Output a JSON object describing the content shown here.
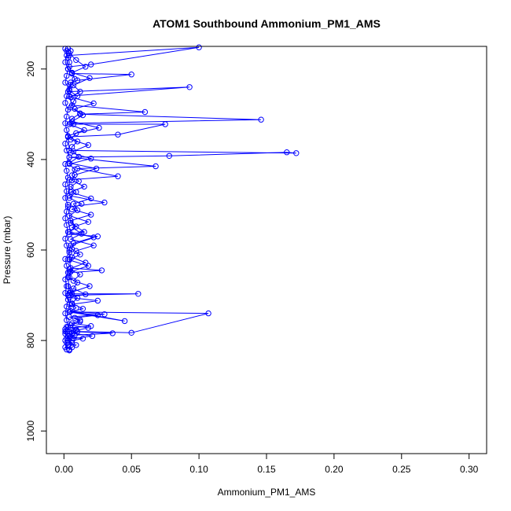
{
  "chart_data": {
    "type": "line",
    "title": "ATOM1 Southbound Ammonium_PM1_AMS",
    "xlabel": "Ammonium_PM1_AMS",
    "ylabel": "Pressure (mbar)",
    "xlim": [
      -0.013,
      0.313
    ],
    "ylim": [
      1050,
      150
    ],
    "y_reversed": true,
    "grid": false,
    "legend": "none",
    "color": "#0000ff",
    "x_ticks": [
      0.0,
      0.05,
      0.1,
      0.15,
      0.2,
      0.25,
      0.3
    ],
    "x_tick_labels": [
      "0.00",
      "0.05",
      "0.10",
      "0.15",
      "0.20",
      "0.25",
      "0.30"
    ],
    "y_ticks": [
      200,
      400,
      600,
      800,
      1000
    ],
    "y_tick_labels": [
      "200",
      "400",
      "600",
      "800",
      "1000"
    ],
    "series": [
      {
        "x": [
          0.003,
          0.005,
          0.004,
          0.1,
          0.02,
          0.004,
          0.006,
          0.05,
          0.01,
          0.005,
          0.003,
          0.093,
          0.004,
          0.006,
          0.06,
          0.012,
          0.146,
          0.005,
          0.007,
          0.075,
          0.04,
          0.003,
          0.004,
          0.172,
          0.165,
          0.078,
          0.004,
          0.068,
          0.01,
          0.04,
          0.004,
          0.004,
          0.03,
          0.003,
          0.005,
          0.015,
          0.004,
          0.025,
          0.005,
          0.004,
          0.004,
          0.005,
          0.028,
          0.004,
          0.004,
          0.003,
          0.005,
          0.004,
          0.006,
          0.055,
          0.003,
          0.004,
          0.005,
          0.045,
          0.004,
          0.107,
          0.05,
          0.01,
          0.004,
          0.004,
          0.003,
          0.006,
          0.004,
          0.004
        ],
        "y": [
          155,
          160,
          170,
          152,
          190,
          195,
          210,
          212,
          225,
          230,
          250,
          240,
          260,
          280,
          295,
          300,
          312,
          320,
          322,
          322,
          345,
          350,
          380,
          386,
          384,
          392,
          395,
          415,
          420,
          437,
          445,
          480,
          495,
          505,
          540,
          560,
          565,
          570,
          590,
          600,
          620,
          640,
          645,
          650,
          660,
          680,
          690,
          695,
          697,
          697,
          700,
          720,
          735,
          757,
          737,
          740,
          783,
          780,
          785,
          790,
          800,
          805,
          820,
          822
        ]
      },
      {
        "x": [
          0.002,
          0.003,
          0.004,
          0.003,
          0.006,
          0.008,
          0.005,
          0.004,
          0.01,
          0.007,
          0.005,
          0.012,
          0.006,
          0.004,
          0.015,
          0.003,
          0.01,
          0.006,
          0.005,
          0.02,
          0.004,
          0.008,
          0.006,
          0.011,
          0.005,
          0.009,
          0.004,
          0.013,
          0.006,
          0.02,
          0.005,
          0.009,
          0.004,
          0.022,
          0.007,
          0.006,
          0.012,
          0.004,
          0.018,
          0.005,
          0.003,
          0.01,
          0.007,
          0.016,
          0.004,
          0.025,
          0.006,
          0.009,
          0.005,
          0.03,
          0.004,
          0.012,
          0.006,
          0.02,
          0.005,
          0.009,
          0.004,
          0.036,
          0.008,
          0.005,
          0.014,
          0.006,
          0.003,
          0.009,
          0.006,
          0.004
        ],
        "y": [
          160,
          175,
          185,
          200,
          210,
          222,
          235,
          248,
          260,
          272,
          285,
          298,
          310,
          322,
          335,
          348,
          360,
          372,
          385,
          398,
          410,
          422,
          435,
          448,
          460,
          472,
          485,
          498,
          510,
          522,
          535,
          548,
          560,
          572,
          585,
          598,
          610,
          622,
          635,
          648,
          660,
          672,
          685,
          698,
          705,
          712,
          720,
          728,
          735,
          742,
          748,
          755,
          762,
          768,
          772,
          776,
          780,
          784,
          788,
          792,
          796,
          800,
          805,
          810,
          815,
          820
        ]
      },
      {
        "x": [
          0.001,
          0.002,
          0.001,
          0.003,
          0.002,
          0.001,
          0.004,
          0.002,
          0.001,
          0.003,
          0.002,
          0.001,
          0.002,
          0.003,
          0.001,
          0.002,
          0.004,
          0.001,
          0.002,
          0.003,
          0.001,
          0.002,
          0.001,
          0.003,
          0.002,
          0.001,
          0.002,
          0.003,
          0.001,
          0.002,
          0.004,
          0.001,
          0.002,
          0.003,
          0.001,
          0.002,
          0.001,
          0.003,
          0.002,
          0.001,
          0.002,
          0.003,
          0.001,
          0.002,
          0.001,
          0.003,
          0.002,
          0.001,
          0.002,
          0.003,
          0.001,
          0.002,
          0.001,
          0.002
        ],
        "y": [
          155,
          170,
          185,
          200,
          215,
          230,
          245,
          260,
          275,
          290,
          305,
          320,
          335,
          350,
          365,
          380,
          395,
          410,
          425,
          440,
          455,
          470,
          485,
          500,
          515,
          530,
          545,
          560,
          575,
          590,
          605,
          620,
          635,
          650,
          665,
          680,
          695,
          710,
          725,
          740,
          755,
          770,
          775,
          780,
          785,
          790,
          795,
          800,
          805,
          810,
          815,
          820,
          780,
          770
        ]
      },
      {
        "x": [
          0.004,
          0.009,
          0.016,
          0.006,
          0.019,
          0.007,
          0.012,
          0.005,
          0.022,
          0.008,
          0.014,
          0.006,
          0.026,
          0.009,
          0.005,
          0.018,
          0.007,
          0.011,
          0.004,
          0.024,
          0.008,
          0.006,
          0.015,
          0.005,
          0.02,
          0.007,
          0.01,
          0.004,
          0.018,
          0.006,
          0.013,
          0.005,
          0.022,
          0.009,
          0.006,
          0.016,
          0.004,
          0.012,
          0.007,
          0.019,
          0.005,
          0.01,
          0.006,
          0.014,
          0.004,
          0.025,
          0.008,
          0.012,
          0.005,
          0.018,
          0.009,
          0.006,
          0.021,
          0.007
        ],
        "y": [
          165,
          180,
          195,
          208,
          220,
          236,
          250,
          262,
          276,
          288,
          302,
          316,
          330,
          342,
          356,
          368,
          382,
          394,
          408,
          420,
          434,
          446,
          460,
          472,
          486,
          498,
          512,
          524,
          538,
          550,
          564,
          576,
          590,
          602,
          616,
          628,
          642,
          654,
          668,
          680,
          694,
          706,
          718,
          730,
          737,
          744,
          750,
          758,
          766,
          772,
          778,
          784,
          790,
          796
        ]
      }
    ]
  }
}
